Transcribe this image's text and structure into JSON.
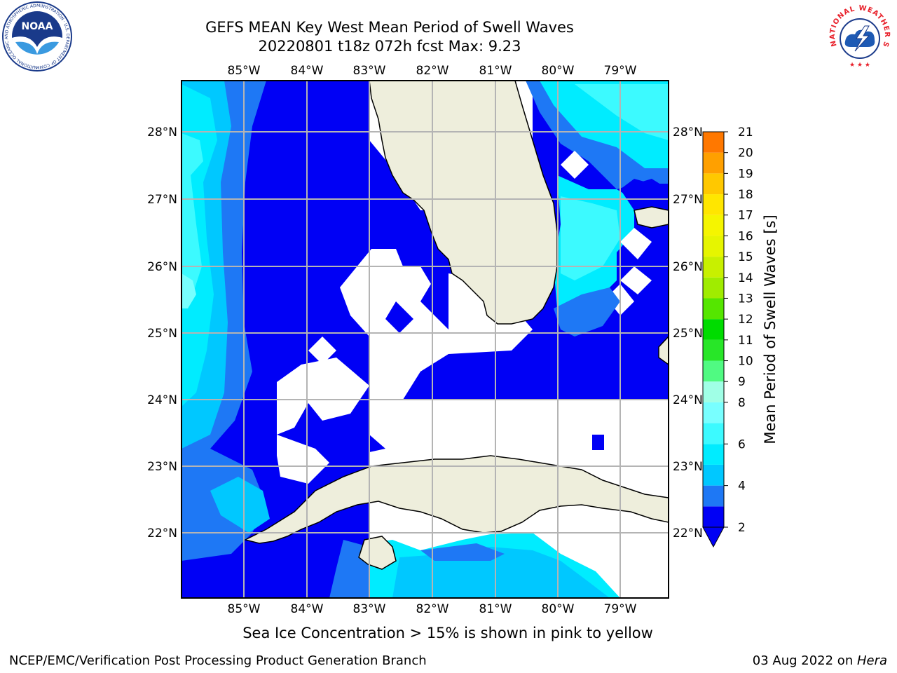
{
  "title_line1": "GEFS MEAN Key West Mean Period of Swell Waves",
  "title_line2": "20220801 t18z 072h fcst    Max: 9.23",
  "lon_ticks": [
    "85°W",
    "84°W",
    "83°W",
    "82°W",
    "81°W",
    "80°W",
    "79°W"
  ],
  "lat_ticks": [
    "28°N",
    "27°N",
    "26°N",
    "25°N",
    "24°N",
    "23°N",
    "22°N"
  ],
  "colorbar": {
    "label": "Mean Period of Swell Waves [s]",
    "levels": [
      2,
      3,
      4,
      5,
      6,
      7,
      8,
      9,
      10,
      11,
      12,
      13,
      14,
      15,
      16,
      17,
      18,
      19,
      20,
      21
    ],
    "tick_labels": [
      "21",
      "20",
      "19",
      "18",
      "17",
      "16",
      "15",
      "14",
      "13",
      "12",
      "11",
      "10",
      "9",
      "8",
      "6",
      "4",
      "2"
    ],
    "colors": [
      "#0000f5",
      "#1e78f5",
      "#00c8ff",
      "#00ecff",
      "#3cfaff",
      "#78ffff",
      "#a0ffe6",
      "#50fa82",
      "#28e628",
      "#00dc00",
      "#55e600",
      "#a0ec00",
      "#c8f000",
      "#e6f500",
      "#f5f500",
      "#ffe600",
      "#ffc800",
      "#ffa000",
      "#ff7800",
      "#ff5000",
      "#ff2800",
      "#f00000"
    ]
  },
  "sea_ice_note": "Sea Ice Concentration > 15% is shown in pink to yellow",
  "footer_left": "NCEP/EMC/Verification Post Processing Product Generation Branch",
  "footer_date": "03 Aug 2022 on ",
  "footer_host": "Hera",
  "logos": {
    "noaa_text": "NOAA",
    "noaa_ring": "NATIONAL OCEANIC AND ATMOSPHERIC ADMINISTRATION · U.S. DEPARTMENT OF COMMERCE",
    "nws_ring": "NATIONAL WEATHER SERVICE"
  },
  "land_color": "#eeeedc",
  "grid_color": "#b4b4b4"
}
